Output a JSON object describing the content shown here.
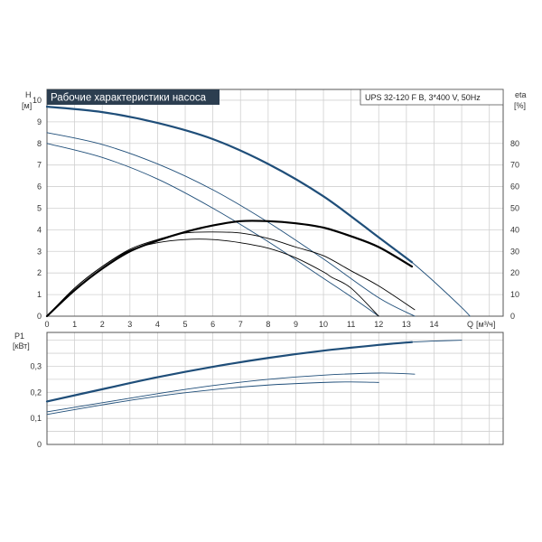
{
  "chart_data": [
    {
      "type": "line",
      "title": "Рабочие характеристики насоса",
      "subtitle": "UPS 32-120 F B, 3*400 V, 50Hz",
      "ylabel": "H",
      "yunit": "[м]",
      "y2label": "eta",
      "y2unit": "[%]",
      "xlabel": "Q",
      "xunit": "[м³/ч]",
      "xlim": [
        0,
        16.5
      ],
      "ylim": [
        0,
        10.5
      ],
      "y2lim": [
        0,
        105
      ],
      "x_ticks": [
        "0",
        "1",
        "2",
        "3",
        "4",
        "5",
        "6",
        "7",
        "8",
        "9",
        "10",
        "11",
        "12",
        "13",
        "14"
      ],
      "y_ticks": [
        "0",
        "1",
        "2",
        "3",
        "4",
        "5",
        "6",
        "7",
        "8",
        "9",
        "10"
      ],
      "y2_ticks": [
        "0",
        "10",
        "20",
        "30",
        "40",
        "50",
        "60",
        "70",
        "80"
      ],
      "grid": true,
      "colors": {
        "curve": "#1f4e79",
        "eta": "#000000",
        "title_bg": "#2c3e50",
        "grid": "#d0d0d0",
        "axis": "#555555"
      },
      "series": [
        {
          "kind": "head",
          "emphasis": true,
          "x": [
            0,
            2,
            4,
            6,
            8,
            10,
            12,
            13.2
          ],
          "y": [
            9.7,
            9.45,
            8.95,
            8.2,
            7.05,
            5.55,
            3.65,
            2.5
          ]
        },
        {
          "kind": "head",
          "emphasis": false,
          "x": [
            13.2,
            14,
            15,
            15.3
          ],
          "y": [
            2.5,
            1.6,
            0.4,
            0
          ]
        },
        {
          "kind": "head",
          "emphasis": false,
          "x": [
            0,
            2,
            4,
            6,
            8,
            10,
            12,
            13.3
          ],
          "y": [
            8.5,
            7.95,
            7.05,
            5.85,
            4.35,
            2.65,
            0.85,
            0
          ]
        },
        {
          "kind": "head",
          "emphasis": false,
          "x": [
            0,
            2,
            4,
            6,
            8,
            10,
            11,
            12
          ],
          "y": [
            8.0,
            7.35,
            6.35,
            5.0,
            3.45,
            1.75,
            0.9,
            0
          ]
        },
        {
          "kind": "eta",
          "emphasis": true,
          "x": [
            0,
            1,
            2,
            3,
            4,
            5,
            6,
            7,
            8,
            9,
            10,
            11,
            12,
            13.2
          ],
          "y": [
            0,
            12,
            22,
            30,
            35,
            39,
            42,
            44,
            44,
            43,
            41,
            37,
            32,
            23
          ]
        },
        {
          "kind": "eta",
          "emphasis": false,
          "x": [
            0,
            1,
            2,
            3,
            4,
            5,
            6,
            7,
            8,
            9,
            10,
            11,
            12,
            13.3
          ],
          "y": [
            0,
            13,
            23,
            31,
            35.5,
            38.5,
            39,
            38.5,
            36,
            32,
            28,
            21,
            14,
            3
          ]
        },
        {
          "kind": "eta",
          "emphasis": false,
          "x": [
            0,
            1,
            2,
            3,
            4,
            5,
            6,
            7,
            8,
            9,
            10,
            10.3,
            11,
            12
          ],
          "y": [
            0,
            13,
            23,
            30.5,
            34,
            35.5,
            35.5,
            34,
            31.5,
            27,
            20.5,
            18,
            13,
            0
          ]
        }
      ]
    },
    {
      "type": "line",
      "ylabel": "P1",
      "yunit": "[кВт]",
      "xlim": [
        0,
        16.5
      ],
      "ylim": [
        0,
        0.43
      ],
      "y_ticks": [
        "0",
        "0,1",
        "0,2",
        "0,3"
      ],
      "grid": true,
      "series": [
        {
          "kind": "power",
          "emphasis": true,
          "x": [
            0,
            2,
            4,
            6,
            8,
            10,
            12,
            13.2
          ],
          "y": [
            0.165,
            0.212,
            0.258,
            0.298,
            0.332,
            0.36,
            0.382,
            0.393
          ]
        },
        {
          "kind": "power",
          "emphasis": false,
          "x": [
            13.2,
            14,
            15
          ],
          "y": [
            0.393,
            0.397,
            0.4
          ]
        },
        {
          "kind": "power",
          "emphasis": false,
          "x": [
            0,
            2,
            4,
            6,
            8,
            10,
            12,
            13.3
          ],
          "y": [
            0.125,
            0.16,
            0.195,
            0.226,
            0.25,
            0.266,
            0.274,
            0.27
          ]
        },
        {
          "kind": "power",
          "emphasis": false,
          "x": [
            0,
            2,
            4,
            6,
            8,
            10,
            11,
            12
          ],
          "y": [
            0.115,
            0.152,
            0.185,
            0.21,
            0.228,
            0.238,
            0.24,
            0.238
          ]
        }
      ]
    }
  ]
}
